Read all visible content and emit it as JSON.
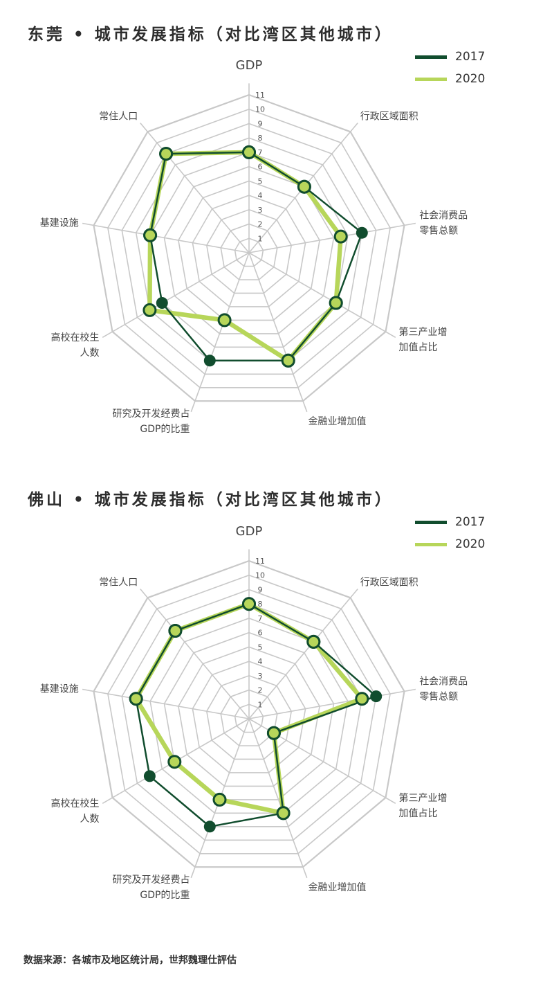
{
  "colors": {
    "series_2017": "#114d2e",
    "series_2020": "#b7d65a",
    "grid": "#c8c8c8",
    "text": "#333333"
  },
  "chart_data": [
    {
      "type": "radar",
      "title": "东莞 • 城市发展指标（对比湾区其他城市）",
      "axes": [
        "GDP",
        "行政区域面积",
        "社会消费品零售总额",
        "第三产业增加值占比",
        "金融业增加值",
        "研究及开发经费占GDP的比重",
        "高校在校生人数",
        "基建设施",
        "常住人口"
      ],
      "axis_labels": [
        [
          "GDP"
        ],
        [
          "行政区域面积"
        ],
        [
          "社会消费品",
          "零售总额"
        ],
        [
          "第三产业增",
          "加值占比"
        ],
        [
          "金融业增加值"
        ],
        [
          "研究及开发经费占",
          "GDP的比重"
        ],
        [
          "高校在校生",
          "人数"
        ],
        [
          "基建设施"
        ],
        [
          "常住人口"
        ]
      ],
      "ticks": [
        "1",
        "2",
        "3",
        "4",
        "5",
        "6",
        "7",
        "8",
        "9",
        "10",
        "11"
      ],
      "range": [
        0,
        11
      ],
      "legend": [
        "2017",
        "2020"
      ],
      "legend_position": "top-right",
      "series": [
        {
          "name": "2017",
          "values": [
            7,
            6,
            8,
            7,
            8,
            8,
            7,
            7,
            9
          ]
        },
        {
          "name": "2020",
          "values": [
            7,
            6,
            6.5,
            7,
            8,
            5,
            8,
            7,
            9
          ]
        }
      ]
    },
    {
      "type": "radar",
      "title": "佛山 • 城市发展指标（对比湾区其他城市）",
      "axes": [
        "GDP",
        "行政区域面积",
        "社会消费品零售总额",
        "第三产业增加值占比",
        "金融业增加值",
        "研究及开发经费占GDP的比重",
        "高校在校生人数",
        "基建设施",
        "常住人口"
      ],
      "axis_labels": [
        [
          "GDP"
        ],
        [
          "行政区域面积"
        ],
        [
          "社会消费品",
          "零售总额"
        ],
        [
          "第三产业增",
          "加值占比"
        ],
        [
          "金融业增加值"
        ],
        [
          "研究及开发经费占",
          "GDP的比重"
        ],
        [
          "高校在校生",
          "人数"
        ],
        [
          "基建设施"
        ],
        [
          "常住人口"
        ]
      ],
      "ticks": [
        "1",
        "2",
        "3",
        "4",
        "5",
        "6",
        "7",
        "8",
        "9",
        "10",
        "11"
      ],
      "range": [
        0,
        11
      ],
      "legend": [
        "2017",
        "2020"
      ],
      "legend_position": "top-right",
      "series": [
        {
          "name": "2017",
          "values": [
            8,
            7,
            9,
            2,
            7,
            8,
            8,
            8,
            8
          ]
        },
        {
          "name": "2020",
          "values": [
            8,
            7,
            8,
            2,
            7,
            6,
            6,
            8,
            8
          ]
        }
      ]
    }
  ],
  "source": "数据来源：各城市及地区统计局，世邦魏理仕評估"
}
